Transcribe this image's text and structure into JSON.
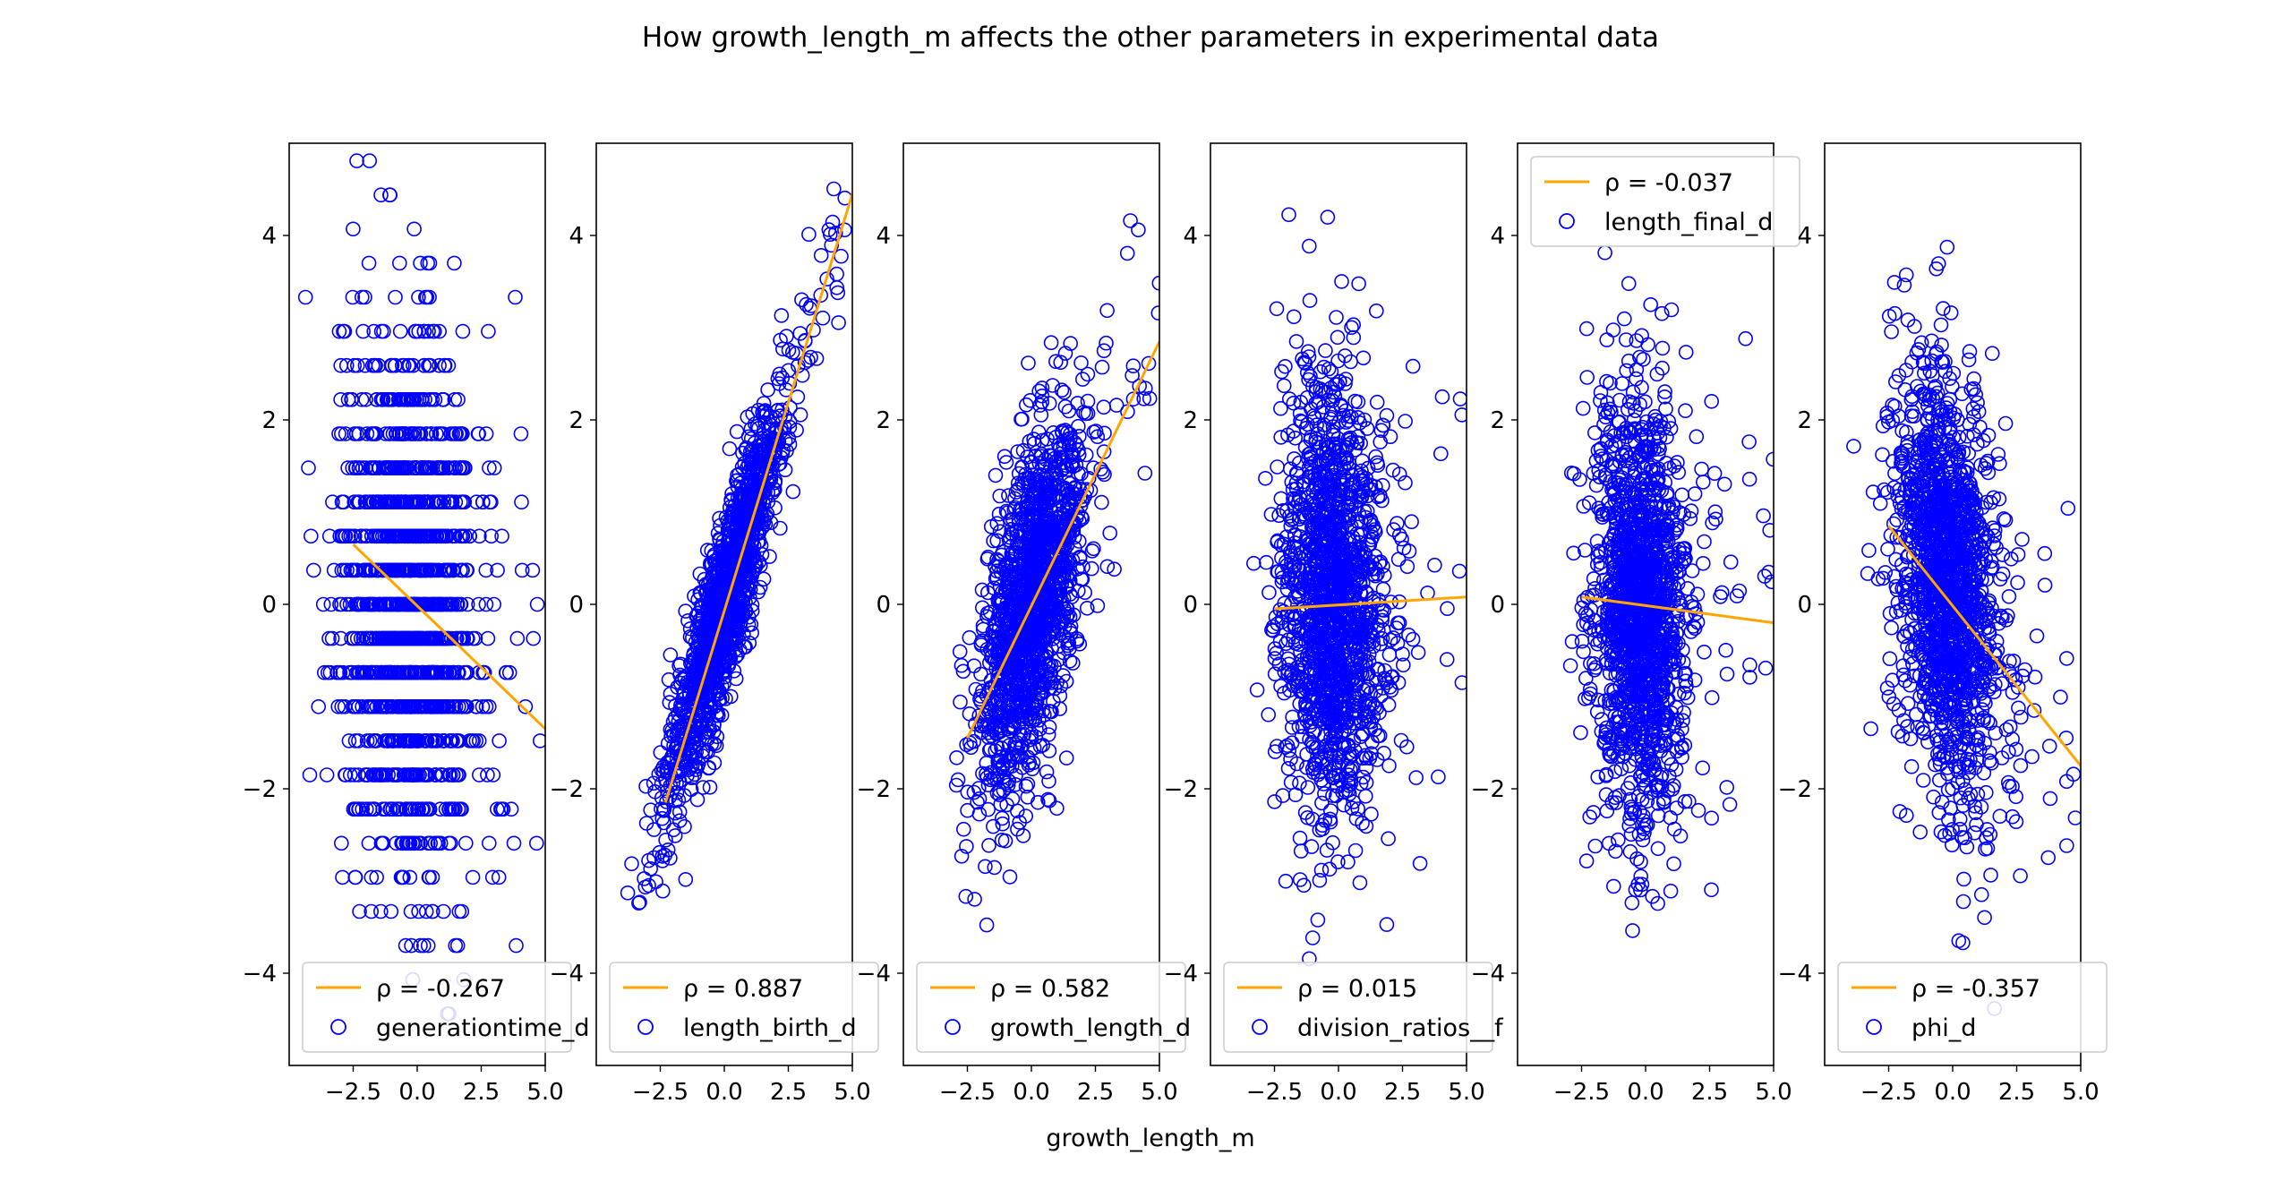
{
  "figure": {
    "title": "How growth_length_m affects the other parameters in experimental data",
    "xlabel": "growth_length_m"
  },
  "colors": {
    "points": "#0000ff",
    "fit_line": "#ffa500",
    "axes": "#000000",
    "background": "#ffffff"
  },
  "chart_data": [
    {
      "type": "scatter",
      "xlim": [
        -5,
        5
      ],
      "ylim": [
        -5,
        5
      ],
      "xticks": [
        "−2.5",
        "0.0",
        "2.5",
        "5.0"
      ],
      "yticks": [
        "−4",
        "−2",
        "0",
        "2",
        "4"
      ],
      "grid": false,
      "legend_position": "lower-left",
      "series": [
        {
          "name": "generationtime_d",
          "kind": "scatter-points",
          "marker": "hollow-circle"
        },
        {
          "name": "ρ = -0.267",
          "kind": "fit-line",
          "x": [
            -2.5,
            5.0
          ],
          "y": [
            0.65,
            -1.35
          ]
        }
      ],
      "point_cloud": {
        "x_center": -0.3,
        "x_spread": 1.3,
        "x_tail": 5.0,
        "y_center": 0.0,
        "y_spread": 1.5,
        "discrete_y_step": 0.37,
        "correlation": -0.267
      }
    },
    {
      "type": "scatter",
      "xlim": [
        -5,
        5
      ],
      "ylim": [
        -5,
        5
      ],
      "xticks": [
        "−2.5",
        "0.0",
        "2.5",
        "5.0"
      ],
      "yticks": [
        "−4",
        "−2",
        "0",
        "2",
        "4"
      ],
      "grid": false,
      "legend_position": "lower-left",
      "series": [
        {
          "name": "length_birth_d",
          "kind": "scatter-points",
          "marker": "hollow-circle"
        },
        {
          "name": "ρ = 0.887",
          "kind": "fit-line",
          "x": [
            -2.3,
            5.0
          ],
          "y": [
            -2.15,
            4.45
          ]
        }
      ],
      "point_cloud": {
        "x_center": 0.0,
        "x_spread": 1.1,
        "x_tail": 4.8,
        "y_center": 0.0,
        "y_spread": 1.0,
        "correlation": 0.887,
        "slope": 0.9
      }
    },
    {
      "type": "scatter",
      "xlim": [
        -5,
        5
      ],
      "ylim": [
        -5,
        5
      ],
      "xticks": [
        "−2.5",
        "0.0",
        "2.5",
        "5.0"
      ],
      "yticks": [
        "−4",
        "−2",
        "0",
        "2",
        "4"
      ],
      "grid": false,
      "legend_position": "lower-left",
      "series": [
        {
          "name": "growth_length_d",
          "kind": "scatter-points",
          "marker": "hollow-circle"
        },
        {
          "name": "ρ = 0.582",
          "kind": "fit-line",
          "x": [
            -2.5,
            5.0
          ],
          "y": [
            -1.45,
            2.85
          ]
        }
      ],
      "point_cloud": {
        "x_center": 0.0,
        "x_spread": 1.0,
        "x_tail": 5.0,
        "y_center": 0.0,
        "y_spread": 1.0,
        "correlation": 0.582,
        "slope": 0.58
      }
    },
    {
      "type": "scatter",
      "xlim": [
        -5,
        5
      ],
      "ylim": [
        -5,
        5
      ],
      "xticks": [
        "−2.5",
        "0.0",
        "2.5",
        "5.0"
      ],
      "yticks": [
        "−4",
        "−2",
        "0",
        "2",
        "4"
      ],
      "grid": false,
      "legend_position": "lower-left",
      "series": [
        {
          "name": "division_ratios__f",
          "kind": "scatter-points",
          "marker": "hollow-circle"
        },
        {
          "name": "ρ = 0.015",
          "kind": "fit-line",
          "x": [
            -2.5,
            5.0
          ],
          "y": [
            -0.05,
            0.08
          ]
        }
      ],
      "point_cloud": {
        "x_center": -0.2,
        "x_spread": 1.0,
        "x_tail": 5.0,
        "y_center": 0.1,
        "y_spread": 1.2,
        "correlation": 0.015,
        "slope": 0.015
      }
    },
    {
      "type": "scatter",
      "xlim": [
        -5,
        5
      ],
      "ylim": [
        -5,
        5
      ],
      "xticks": [
        "−2.5",
        "0.0",
        "2.5",
        "5.0"
      ],
      "yticks": [
        "−4",
        "−2",
        "0",
        "2",
        "4"
      ],
      "grid": false,
      "legend_position": "upper-left",
      "series": [
        {
          "name": "length_final_d",
          "kind": "scatter-points",
          "marker": "hollow-circle"
        },
        {
          "name": "ρ = -0.037",
          "kind": "fit-line",
          "x": [
            -2.5,
            5.0
          ],
          "y": [
            0.08,
            -0.2
          ]
        }
      ],
      "point_cloud": {
        "x_center": -0.2,
        "x_spread": 0.9,
        "x_tail": 5.0,
        "y_center": 0.0,
        "y_spread": 1.15,
        "correlation": -0.037,
        "slope": -0.037
      }
    },
    {
      "type": "scatter",
      "xlim": [
        -5,
        5
      ],
      "ylim": [
        -5,
        5
      ],
      "xticks": [
        "−2.5",
        "0.0",
        "2.5",
        "5.0"
      ],
      "yticks": [
        "−4",
        "−2",
        "0",
        "2",
        "4"
      ],
      "grid": false,
      "legend_position": "lower-left",
      "series": [
        {
          "name": "phi_d",
          "kind": "scatter-points",
          "marker": "hollow-circle"
        },
        {
          "name": "ρ = -0.357",
          "kind": "fit-line",
          "x": [
            -2.5,
            5.0
          ],
          "y": [
            0.85,
            -1.75
          ]
        }
      ],
      "point_cloud": {
        "x_center": -0.2,
        "x_spread": 1.0,
        "x_tail": 5.0,
        "y_center": 0.2,
        "y_spread": 1.15,
        "correlation": -0.357,
        "slope": -0.36
      }
    }
  ]
}
